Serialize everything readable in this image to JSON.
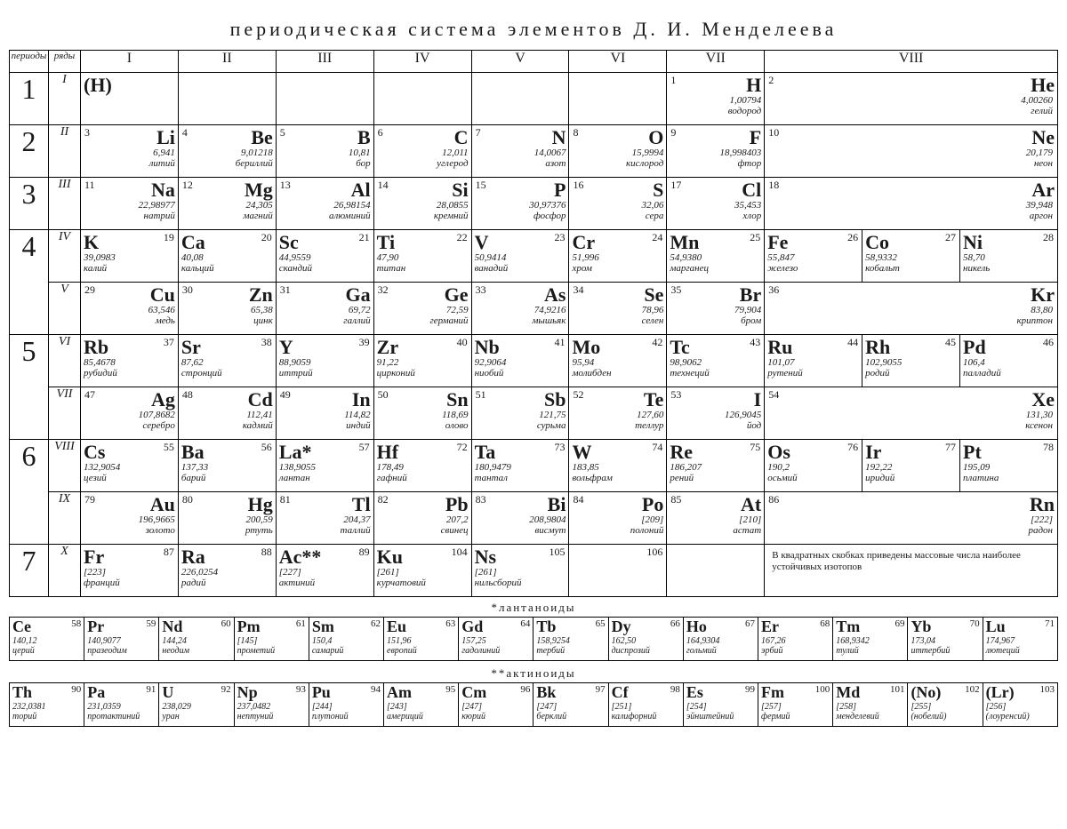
{
  "title": "периодическая система элементов Д. И. Менделеева",
  "headers": {
    "period": "периоды",
    "row": "ряды"
  },
  "groups": [
    "I",
    "II",
    "III",
    "IV",
    "V",
    "VI",
    "VII",
    "VIII"
  ],
  "periods": [
    "1",
    "2",
    "3",
    "4",
    "5",
    "6",
    "7"
  ],
  "rows": [
    "I",
    "II",
    "III",
    "IV",
    "V",
    "VI",
    "VII",
    "VIII",
    "IX",
    "X"
  ],
  "note": "В квадратных скобках приведены массовые числа наиболее устойчивых изотопов",
  "series_labels": {
    "lan": "*лантаноиды",
    "act": "**актиноиды"
  },
  "placeholder_H": "(H)",
  "cells": {
    "H": {
      "n": "1",
      "s": "H",
      "m": "1,00794",
      "nm": "водород"
    },
    "He": {
      "n": "2",
      "s": "He",
      "m": "4,00260",
      "nm": "гелий"
    },
    "Li": {
      "n": "3",
      "s": "Li",
      "m": "6,941",
      "nm": "литий"
    },
    "Be": {
      "n": "4",
      "s": "Be",
      "m": "9,01218",
      "nm": "бериллий"
    },
    "B": {
      "n": "5",
      "s": "B",
      "m": "10,81",
      "nm": "бор"
    },
    "C": {
      "n": "6",
      "s": "C",
      "m": "12,011",
      "nm": "углерод"
    },
    "N": {
      "n": "7",
      "s": "N",
      "m": "14,0067",
      "nm": "азот"
    },
    "O": {
      "n": "8",
      "s": "O",
      "m": "15,9994",
      "nm": "кислород"
    },
    "F": {
      "n": "9",
      "s": "F",
      "m": "18,998403",
      "nm": "фтор"
    },
    "Ne": {
      "n": "10",
      "s": "Ne",
      "m": "20,179",
      "nm": "неон"
    },
    "Na": {
      "n": "11",
      "s": "Na",
      "m": "22,98977",
      "nm": "натрий"
    },
    "Mg": {
      "n": "12",
      "s": "Mg",
      "m": "24,305",
      "nm": "магний"
    },
    "Al": {
      "n": "13",
      "s": "Al",
      "m": "26,98154",
      "nm": "алюминий"
    },
    "Si": {
      "n": "14",
      "s": "Si",
      "m": "28,0855",
      "nm": "кремний"
    },
    "P": {
      "n": "15",
      "s": "P",
      "m": "30,97376",
      "nm": "фосфор"
    },
    "S": {
      "n": "16",
      "s": "S",
      "m": "32,06",
      "nm": "сера"
    },
    "Cl": {
      "n": "17",
      "s": "Cl",
      "m": "35,453",
      "nm": "хлор"
    },
    "Ar": {
      "n": "18",
      "s": "Ar",
      "m": "39,948",
      "nm": "аргон"
    },
    "K": {
      "n": "19",
      "s": "K",
      "m": "39,0983",
      "nm": "калий"
    },
    "Ca": {
      "n": "20",
      "s": "Ca",
      "m": "40,08",
      "nm": "кальций"
    },
    "Sc": {
      "n": "21",
      "s": "Sc",
      "m": "44,9559",
      "nm": "скандий"
    },
    "Ti": {
      "n": "22",
      "s": "Ti",
      "m": "47,90",
      "nm": "титан"
    },
    "V": {
      "n": "23",
      "s": "V",
      "m": "50,9414",
      "nm": "ванадий"
    },
    "Cr": {
      "n": "24",
      "s": "Cr",
      "m": "51,996",
      "nm": "хром"
    },
    "Mn": {
      "n": "25",
      "s": "Mn",
      "m": "54,9380",
      "nm": "марганец"
    },
    "Fe": {
      "n": "26",
      "s": "Fe",
      "m": "55,847",
      "nm": "железо"
    },
    "Co": {
      "n": "27",
      "s": "Co",
      "m": "58,9332",
      "nm": "кобальт"
    },
    "Ni": {
      "n": "28",
      "s": "Ni",
      "m": "58,70",
      "nm": "никель"
    },
    "Cu": {
      "n": "29",
      "s": "Cu",
      "m": "63,546",
      "nm": "медь"
    },
    "Zn": {
      "n": "30",
      "s": "Zn",
      "m": "65,38",
      "nm": "цинк"
    },
    "Ga": {
      "n": "31",
      "s": "Ga",
      "m": "69,72",
      "nm": "галлий"
    },
    "Ge": {
      "n": "32",
      "s": "Ge",
      "m": "72,59",
      "nm": "германий"
    },
    "As": {
      "n": "33",
      "s": "As",
      "m": "74,9216",
      "nm": "мышьяк"
    },
    "Se": {
      "n": "34",
      "s": "Se",
      "m": "78,96",
      "nm": "селен"
    },
    "Br": {
      "n": "35",
      "s": "Br",
      "m": "79,904",
      "nm": "бром"
    },
    "Kr": {
      "n": "36",
      "s": "Kr",
      "m": "83,80",
      "nm": "криптон"
    },
    "Rb": {
      "n": "37",
      "s": "Rb",
      "m": "85,4678",
      "nm": "рубидий"
    },
    "Sr": {
      "n": "38",
      "s": "Sr",
      "m": "87,62",
      "nm": "стронций"
    },
    "Y": {
      "n": "39",
      "s": "Y",
      "m": "88,9059",
      "nm": "иттрий"
    },
    "Zr": {
      "n": "40",
      "s": "Zr",
      "m": "91,22",
      "nm": "цирконий"
    },
    "Nb": {
      "n": "41",
      "s": "Nb",
      "m": "92,9064",
      "nm": "ниобий"
    },
    "Mo": {
      "n": "42",
      "s": "Mo",
      "m": "95,94",
      "nm": "молибден"
    },
    "Tc": {
      "n": "43",
      "s": "Tc",
      "m": "98,9062",
      "nm": "технеций"
    },
    "Ru": {
      "n": "44",
      "s": "Ru",
      "m": "101,07",
      "nm": "рутений"
    },
    "Rh": {
      "n": "45",
      "s": "Rh",
      "m": "102,9055",
      "nm": "родий"
    },
    "Pd": {
      "n": "46",
      "s": "Pd",
      "m": "106,4",
      "nm": "палладий"
    },
    "Ag": {
      "n": "47",
      "s": "Ag",
      "m": "107,8682",
      "nm": "серебро"
    },
    "Cd": {
      "n": "48",
      "s": "Cd",
      "m": "112,41",
      "nm": "кадмий"
    },
    "In": {
      "n": "49",
      "s": "In",
      "m": "114,82",
      "nm": "индий"
    },
    "Sn": {
      "n": "50",
      "s": "Sn",
      "m": "118,69",
      "nm": "олово"
    },
    "Sb": {
      "n": "51",
      "s": "Sb",
      "m": "121,75",
      "nm": "сурьма"
    },
    "Te": {
      "n": "52",
      "s": "Te",
      "m": "127,60",
      "nm": "теллур"
    },
    "I": {
      "n": "53",
      "s": "I",
      "m": "126,9045",
      "nm": "йод"
    },
    "Xe": {
      "n": "54",
      "s": "Xe",
      "m": "131,30",
      "nm": "ксенон"
    },
    "Cs": {
      "n": "55",
      "s": "Cs",
      "m": "132,9054",
      "nm": "цезий"
    },
    "Ba": {
      "n": "56",
      "s": "Ba",
      "m": "137,33",
      "nm": "барий"
    },
    "La": {
      "n": "57",
      "s": "La*",
      "m": "138,9055",
      "nm": "лантан"
    },
    "Hf": {
      "n": "72",
      "s": "Hf",
      "m": "178,49",
      "nm": "гафний"
    },
    "Ta": {
      "n": "73",
      "s": "Ta",
      "m": "180,9479",
      "nm": "тантал"
    },
    "W": {
      "n": "74",
      "s": "W",
      "m": "183,85",
      "nm": "вольфрам"
    },
    "Re": {
      "n": "75",
      "s": "Re",
      "m": "186,207",
      "nm": "рений"
    },
    "Os": {
      "n": "76",
      "s": "Os",
      "m": "190,2",
      "nm": "осьмий"
    },
    "Ir": {
      "n": "77",
      "s": "Ir",
      "m": "192,22",
      "nm": "иридий"
    },
    "Pt": {
      "n": "78",
      "s": "Pt",
      "m": "195,09",
      "nm": "платина"
    },
    "Au": {
      "n": "79",
      "s": "Au",
      "m": "196,9665",
      "nm": "золото"
    },
    "Hg": {
      "n": "80",
      "s": "Hg",
      "m": "200,59",
      "nm": "ртуть"
    },
    "Tl": {
      "n": "81",
      "s": "Tl",
      "m": "204,37",
      "nm": "таллий"
    },
    "Pb": {
      "n": "82",
      "s": "Pb",
      "m": "207,2",
      "nm": "свинец"
    },
    "Bi": {
      "n": "83",
      "s": "Bi",
      "m": "208,9804",
      "nm": "висмут"
    },
    "Po": {
      "n": "84",
      "s": "Po",
      "m": "[209]",
      "nm": "полоний"
    },
    "At": {
      "n": "85",
      "s": "At",
      "m": "[210]",
      "nm": "астат"
    },
    "Rn": {
      "n": "86",
      "s": "Rn",
      "m": "[222]",
      "nm": "радон"
    },
    "Fr": {
      "n": "87",
      "s": "Fr",
      "m": "[223]",
      "nm": "франций"
    },
    "Ra": {
      "n": "88",
      "s": "Ra",
      "m": "226,0254",
      "nm": "радий"
    },
    "Ac": {
      "n": "89",
      "s": "Ac**",
      "m": "[227]",
      "nm": "актиний"
    },
    "Ku": {
      "n": "104",
      "s": "Ku",
      "m": "[261]",
      "nm": "курчатовий"
    },
    "Ns": {
      "n": "105",
      "s": "Ns",
      "m": "[261]",
      "nm": "нильсборий"
    },
    "E106": {
      "n": "106",
      "s": "",
      "m": "",
      "nm": ""
    }
  },
  "lan": [
    {
      "n": "58",
      "s": "Ce",
      "m": "140,12",
      "nm": "церий"
    },
    {
      "n": "59",
      "s": "Pr",
      "m": "140,9077",
      "nm": "празеодим"
    },
    {
      "n": "60",
      "s": "Nd",
      "m": "144,24",
      "nm": "неодим"
    },
    {
      "n": "61",
      "s": "Pm",
      "m": "[145]",
      "nm": "прометий"
    },
    {
      "n": "62",
      "s": "Sm",
      "m": "150,4",
      "nm": "самарий"
    },
    {
      "n": "63",
      "s": "Eu",
      "m": "151,96",
      "nm": "европий"
    },
    {
      "n": "64",
      "s": "Gd",
      "m": "157,25",
      "nm": "гадолиний"
    },
    {
      "n": "65",
      "s": "Tb",
      "m": "158,9254",
      "nm": "тербий"
    },
    {
      "n": "66",
      "s": "Dy",
      "m": "162,50",
      "nm": "диспрозий"
    },
    {
      "n": "67",
      "s": "Ho",
      "m": "164,9304",
      "nm": "гольмий"
    },
    {
      "n": "68",
      "s": "Er",
      "m": "167,26",
      "nm": "эрбий"
    },
    {
      "n": "69",
      "s": "Tm",
      "m": "168,9342",
      "nm": "тулий"
    },
    {
      "n": "70",
      "s": "Yb",
      "m": "173,04",
      "nm": "иттербий"
    },
    {
      "n": "71",
      "s": "Lu",
      "m": "174,967",
      "nm": "лютеций"
    }
  ],
  "act": [
    {
      "n": "90",
      "s": "Th",
      "m": "232,0381",
      "nm": "торий"
    },
    {
      "n": "91",
      "s": "Pa",
      "m": "231,0359",
      "nm": "протактиний"
    },
    {
      "n": "92",
      "s": "U",
      "m": "238,029",
      "nm": "уран"
    },
    {
      "n": "93",
      "s": "Np",
      "m": "237,0482",
      "nm": "нептуний"
    },
    {
      "n": "94",
      "s": "Pu",
      "m": "[244]",
      "nm": "плутоний"
    },
    {
      "n": "95",
      "s": "Am",
      "m": "[243]",
      "nm": "америций"
    },
    {
      "n": "96",
      "s": "Cm",
      "m": "[247]",
      "nm": "кюрий"
    },
    {
      "n": "97",
      "s": "Bk",
      "m": "[247]",
      "nm": "берклий"
    },
    {
      "n": "98",
      "s": "Cf",
      "m": "[251]",
      "nm": "калифорний"
    },
    {
      "n": "99",
      "s": "Es",
      "m": "[254]",
      "nm": "эйнштейний"
    },
    {
      "n": "100",
      "s": "Fm",
      "m": "[257]",
      "nm": "фермий"
    },
    {
      "n": "101",
      "s": "Md",
      "m": "[258]",
      "nm": "менделевий"
    },
    {
      "n": "102",
      "s": "(No)",
      "m": "[255]",
      "nm": "(нобелий)"
    },
    {
      "n": "103",
      "s": "(Lr)",
      "m": "[256]",
      "nm": "(лоуренсий)"
    }
  ],
  "layout": {
    "rows": [
      {
        "period": "1",
        "rowspan": 1,
        "rowlbl": "I",
        "type": "B",
        "cells": [
          "(H)",
          "",
          "",
          "",
          "",
          "",
          "H"
        ],
        "g8": "He",
        "g8span": 3
      },
      {
        "period": "2",
        "rowspan": 1,
        "rowlbl": "II",
        "type": "B",
        "cells": [
          "Li",
          "Be",
          "B",
          "C",
          "N",
          "O",
          "F"
        ],
        "g8": "Ne",
        "g8span": 3
      },
      {
        "period": "3",
        "rowspan": 1,
        "rowlbl": "III",
        "type": "B",
        "cells": [
          "Na",
          "Mg",
          "Al",
          "Si",
          "P",
          "S",
          "Cl"
        ],
        "g8": "Ar",
        "g8span": 3
      },
      {
        "period": "4",
        "rowspan": 2,
        "rowlbl": "IV",
        "type": "A",
        "cells": [
          "K",
          "Ca",
          "Sc",
          "Ti",
          "V",
          "Cr",
          "Mn"
        ],
        "triad": [
          "Fe",
          "Co",
          "Ni"
        ]
      },
      {
        "rowlbl": "V",
        "type": "B",
        "cells": [
          "Cu",
          "Zn",
          "Ga",
          "Ge",
          "As",
          "Se",
          "Br"
        ],
        "g8": "Kr",
        "g8span": 3
      },
      {
        "period": "5",
        "rowspan": 2,
        "rowlbl": "VI",
        "type": "A",
        "cells": [
          "Rb",
          "Sr",
          "Y",
          "Zr",
          "Nb",
          "Mo",
          "Tc"
        ],
        "triad": [
          "Ru",
          "Rh",
          "Pd"
        ]
      },
      {
        "rowlbl": "VII",
        "type": "B",
        "cells": [
          "Ag",
          "Cd",
          "In",
          "Sn",
          "Sb",
          "Te",
          "I"
        ],
        "g8": "Xe",
        "g8span": 3
      },
      {
        "period": "6",
        "rowspan": 2,
        "rowlbl": "VIII",
        "type": "A",
        "cells": [
          "Cs",
          "Ba",
          "La",
          "Hf",
          "Ta",
          "W",
          "Re"
        ],
        "triad": [
          "Os",
          "Ir",
          "Pt"
        ]
      },
      {
        "rowlbl": "IX",
        "type": "B",
        "cells": [
          "Au",
          "Hg",
          "Tl",
          "Pb",
          "Bi",
          "Po",
          "At"
        ],
        "g8": "Rn",
        "g8span": 3
      },
      {
        "period": "7",
        "rowspan": 1,
        "rowlbl": "X",
        "type": "A",
        "cells": [
          "Fr",
          "Ra",
          "Ac",
          "Ku",
          "Ns",
          "E106",
          ""
        ],
        "note": true
      }
    ]
  }
}
